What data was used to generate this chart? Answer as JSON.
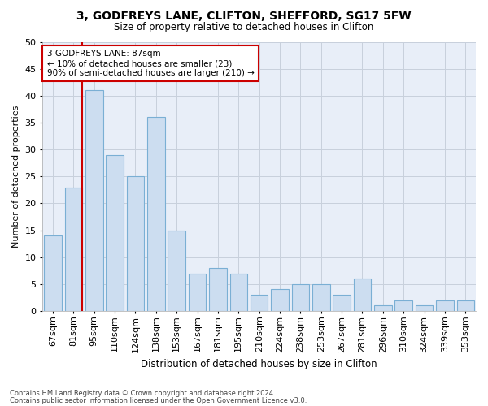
{
  "title1": "3, GODFREYS LANE, CLIFTON, SHEFFORD, SG17 5FW",
  "title2": "Size of property relative to detached houses in Clifton",
  "xlabel": "Distribution of detached houses by size in Clifton",
  "ylabel": "Number of detached properties",
  "footer1": "Contains HM Land Registry data © Crown copyright and database right 2024.",
  "footer2": "Contains public sector information licensed under the Open Government Licence v3.0.",
  "bins": [
    "67sqm",
    "81sqm",
    "95sqm",
    "110sqm",
    "124sqm",
    "138sqm",
    "153sqm",
    "167sqm",
    "181sqm",
    "195sqm",
    "210sqm",
    "224sqm",
    "238sqm",
    "253sqm",
    "267sqm",
    "281sqm",
    "296sqm",
    "310sqm",
    "324sqm",
    "339sqm",
    "353sqm"
  ],
  "values": [
    14,
    23,
    41,
    29,
    25,
    36,
    15,
    7,
    8,
    7,
    3,
    4,
    5,
    5,
    3,
    6,
    1,
    2,
    1,
    2,
    2
  ],
  "bar_color": "#ccddf0",
  "bar_edge_color": "#7aafd4",
  "grid_color": "#c8d0dc",
  "background_color": "#ffffff",
  "plot_bg_color": "#e8eef8",
  "annotation_box_color": "#ffffff",
  "annotation_border_color": "#cc0000",
  "red_line_color": "#cc0000",
  "annotation_text_line1": "3 GODFREYS LANE: 87sqm",
  "annotation_text_line2": "← 10% of detached houses are smaller (23)",
  "annotation_text_line3": "90% of semi-detached houses are larger (210) →",
  "ylim": [
    0,
    50
  ],
  "yticks": [
    0,
    5,
    10,
    15,
    20,
    25,
    30,
    35,
    40,
    45,
    50
  ],
  "red_line_x": 1.43
}
